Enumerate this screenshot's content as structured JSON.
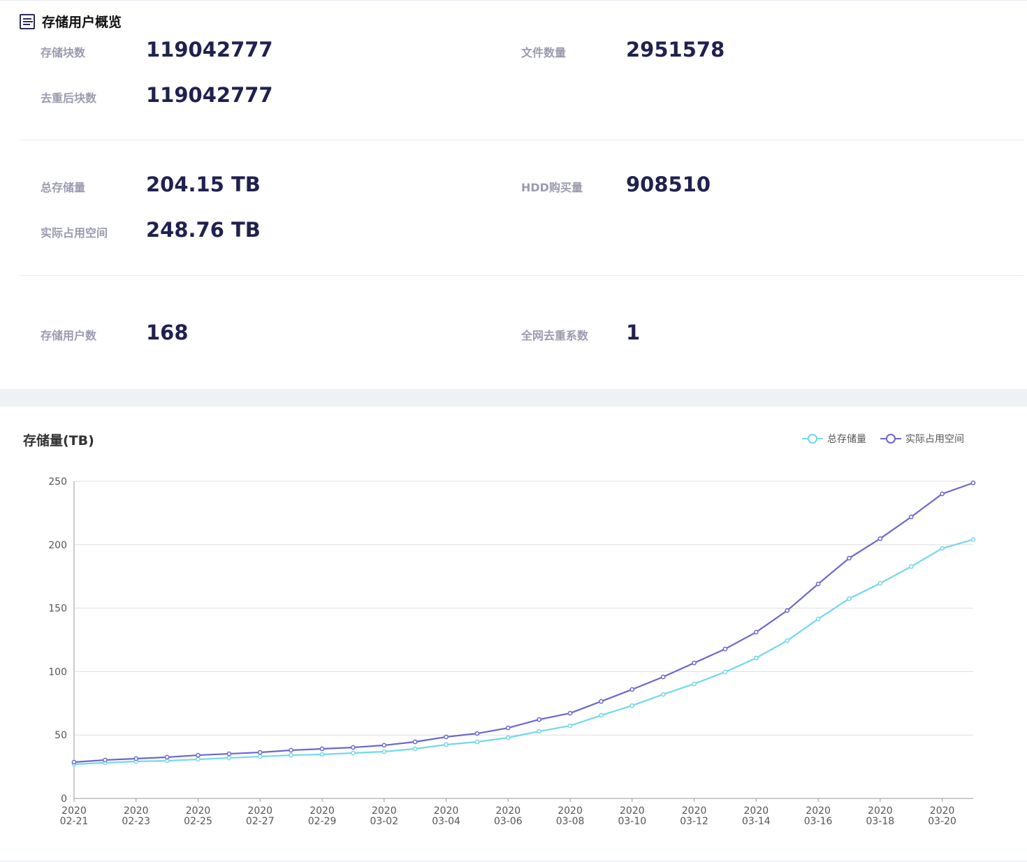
{
  "overview": {
    "title": "存储用户概览",
    "icon": "list-icon",
    "stats": [
      {
        "label": "存储块数",
        "value": "119042777"
      },
      {
        "label": "文件数量",
        "value": "2951578"
      },
      {
        "label": "去重后块数",
        "value": "119042777"
      },
      {
        "label": "总存储量",
        "value": "204.15 TB"
      },
      {
        "label": "HDD购买量",
        "value": "908510"
      },
      {
        "label": "实际占用空间",
        "value": "248.76 TB"
      },
      {
        "label": "存储用户数",
        "value": "168"
      },
      {
        "label": "全网去重系数",
        "value": "1"
      }
    ]
  },
  "chart_data": {
    "type": "line",
    "title": "存储量(TB)",
    "xlabel": "",
    "ylabel": "",
    "ylim": [
      0,
      250
    ],
    "yticks": [
      "0",
      "50",
      "100",
      "150",
      "200",
      "250"
    ],
    "x": [
      "02-21",
      "02-22",
      "02-23",
      "02-24",
      "02-25",
      "02-26",
      "02-27",
      "02-28",
      "02-29",
      "03-01",
      "03-02",
      "03-03",
      "03-04",
      "03-05",
      "03-06",
      "03-07",
      "03-08",
      "03-09",
      "03-10",
      "03-11",
      "03-12",
      "03-13",
      "03-14",
      "03-15",
      "03-16",
      "03-17",
      "03-18",
      "03-19",
      "03-20",
      "03-21"
    ],
    "xtick_labels": [
      [
        "2020",
        "02-21"
      ],
      [
        "2020",
        "02-23"
      ],
      [
        "2020",
        "02-25"
      ],
      [
        "2020",
        "02-27"
      ],
      [
        "2020",
        "02-29"
      ],
      [
        "2020",
        "03-02"
      ],
      [
        "2020",
        "03-04"
      ],
      [
        "2020",
        "03-06"
      ],
      [
        "2020",
        "03-08"
      ],
      [
        "2020",
        "03-10"
      ],
      [
        "2020",
        "03-12"
      ],
      [
        "2020",
        "03-14"
      ],
      [
        "2020",
        "03-16"
      ],
      [
        "2020",
        "03-18"
      ],
      [
        "2020",
        "03-20"
      ]
    ],
    "legend_position": "top-right",
    "grid": true,
    "series": [
      {
        "name": "总存储量",
        "color": "#72d8ea",
        "values": [
          27.0,
          28.1,
          29.2,
          29.7,
          30.8,
          31.9,
          33.0,
          34.1,
          34.7,
          35.8,
          36.9,
          39.1,
          42.4,
          44.6,
          47.9,
          52.9,
          57.3,
          65.5,
          73.2,
          82.0,
          90.3,
          99.7,
          110.7,
          124.4,
          141.5,
          157.5,
          169.6,
          182.8,
          197.1,
          204.15
        ]
      },
      {
        "name": "实际占用空间",
        "color": "#6a67d0",
        "values": [
          28.6,
          30.3,
          31.4,
          32.5,
          34.1,
          35.2,
          36.3,
          38.0,
          39.1,
          40.2,
          41.9,
          44.6,
          48.5,
          51.2,
          55.6,
          62.2,
          67.2,
          76.5,
          85.9,
          95.8,
          106.8,
          117.8,
          131.1,
          148.1,
          169.1,
          189.4,
          204.8,
          221.9,
          240.1,
          248.76
        ]
      }
    ]
  }
}
